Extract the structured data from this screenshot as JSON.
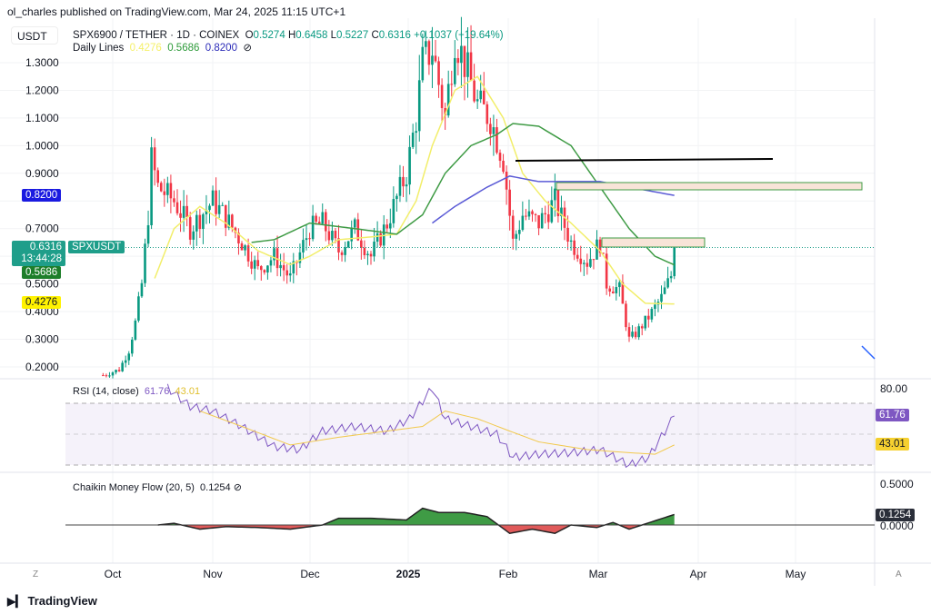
{
  "header": {
    "published": "ol_charles published on TradingView.com, Mar 24, 2025 11:15 UTC+1",
    "currency": "USDT",
    "symbol": "SPX6900 / TETHER · 1D · COINEX",
    "o_label": "O",
    "o": "0.5274",
    "h_label": "H",
    "h": "0.6458",
    "l_label": "L",
    "l": "0.5227",
    "c_label": "C",
    "c": "0.6316",
    "change": "+0.1037 (+19.64%)",
    "daily_lines_label": "Daily Lines",
    "ma1": "0.4276",
    "ma2": "0.5686",
    "ma3": "0.8200",
    "eye_icon": "⊘"
  },
  "price_labels": {
    "ma3": "0.8200",
    "price": "0.6316",
    "countdown": "13:44:28",
    "ticker": "SPXUSDT",
    "ma2": "0.5686",
    "ma1": "0.4276"
  },
  "rsi": {
    "title": "RSI (14, close)",
    "value": "61.76",
    "signal": "43.01",
    "axis_top": "80.00"
  },
  "cmf": {
    "title": "Chaikin Money Flow (20, 5)",
    "value": "0.1254",
    "axis_top": "0.5000",
    "axis_zero": "0.0000"
  },
  "footer": {
    "z": "Z",
    "a": "A",
    "logo": "TradingView"
  },
  "colors": {
    "up": "#089981",
    "down": "#f23645",
    "ma1": "#f2ee6a",
    "ma2": "#3f9b45",
    "ma3": "#5b5bd6",
    "rsi": "#7e57c2",
    "cmf_up": "#3f9b45",
    "cmf_down": "#e05a5a"
  },
  "chart_data": [
    {
      "type": "candlestick",
      "title": "SPX6900 / TETHER · 1D · COINEX",
      "y_ticks": [
        "1.3000",
        "1.2000",
        "1.1000",
        "1.0000",
        "0.9000",
        "0.7000",
        "0.5000",
        "0.4000",
        "0.3000",
        "0.2000"
      ],
      "x_ticks": [
        "Oct",
        "Nov",
        "Dec",
        "2025",
        "Feb",
        "Mar",
        "Apr",
        "May"
      ],
      "close": [
        [
          "2024-09-28",
          0.17
        ],
        [
          "2024-10-03",
          0.19
        ],
        [
          "2024-10-06",
          0.26
        ],
        [
          "2024-10-08",
          0.36
        ],
        [
          "2024-10-10",
          0.5
        ],
        [
          "2024-10-12",
          0.75
        ],
        [
          "2024-10-13",
          0.95
        ],
        [
          "2024-10-15",
          0.85
        ],
        [
          "2024-10-20",
          0.8
        ],
        [
          "2024-10-25",
          0.7
        ],
        [
          "2024-11-01",
          0.8
        ],
        [
          "2024-11-05",
          0.74
        ],
        [
          "2024-11-10",
          0.65
        ],
        [
          "2024-11-15",
          0.55
        ],
        [
          "2024-11-20",
          0.6
        ],
        [
          "2024-11-25",
          0.52
        ],
        [
          "2024-12-01",
          0.7
        ],
        [
          "2024-12-05",
          0.72
        ],
        [
          "2024-12-10",
          0.62
        ],
        [
          "2024-12-15",
          0.7
        ],
        [
          "2024-12-20",
          0.6
        ],
        [
          "2024-12-25",
          0.72
        ],
        [
          "2024-12-31",
          0.9
        ],
        [
          "2025-01-03",
          1.1
        ],
        [
          "2025-01-05",
          1.3
        ],
        [
          "2025-01-08",
          1.35
        ],
        [
          "2025-01-12",
          1.1
        ],
        [
          "2025-01-15",
          1.4
        ],
        [
          "2025-01-18",
          1.3
        ],
        [
          "2025-01-22",
          1.15
        ],
        [
          "2025-01-26",
          1.1
        ],
        [
          "2025-01-30",
          0.95
        ],
        [
          "2025-02-02",
          0.65
        ],
        [
          "2025-02-05",
          0.75
        ],
        [
          "2025-02-10",
          0.72
        ],
        [
          "2025-02-15",
          0.8
        ],
        [
          "2025-02-20",
          0.65
        ],
        [
          "2025-02-25",
          0.58
        ],
        [
          "2025-03-01",
          0.65
        ],
        [
          "2025-03-03",
          0.5
        ],
        [
          "2025-03-07",
          0.48
        ],
        [
          "2025-03-10",
          0.3
        ],
        [
          "2025-03-12",
          0.32
        ],
        [
          "2025-03-16",
          0.38
        ],
        [
          "2025-03-20",
          0.45
        ],
        [
          "2025-03-23",
          0.53
        ],
        [
          "2025-03-24",
          0.6316
        ]
      ],
      "ma_fast": [
        [
          "2024-10-14",
          0.52
        ],
        [
          "2024-10-20",
          0.7
        ],
        [
          "2024-10-28",
          0.78
        ],
        [
          "2024-11-05",
          0.72
        ],
        [
          "2024-11-15",
          0.62
        ],
        [
          "2024-11-25",
          0.57
        ],
        [
          "2024-12-01",
          0.6
        ],
        [
          "2024-12-10",
          0.66
        ],
        [
          "2024-12-20",
          0.67
        ],
        [
          "2024-12-28",
          0.68
        ],
        [
          "2025-01-03",
          0.8
        ],
        [
          "2025-01-08",
          1.0
        ],
        [
          "2025-01-15",
          1.2
        ],
        [
          "2025-01-22",
          1.25
        ],
        [
          "2025-01-30",
          1.1
        ],
        [
          "2025-02-05",
          0.9
        ],
        [
          "2025-02-12",
          0.8
        ],
        [
          "2025-02-20",
          0.72
        ],
        [
          "2025-03-01",
          0.62
        ],
        [
          "2025-03-08",
          0.5
        ],
        [
          "2025-03-15",
          0.43
        ],
        [
          "2025-03-24",
          0.4276
        ]
      ],
      "ma_mid": [
        [
          "2024-11-13",
          0.65
        ],
        [
          "2024-11-20",
          0.66
        ],
        [
          "2024-12-01",
          0.72
        ],
        [
          "2024-12-15",
          0.7
        ],
        [
          "2024-12-28",
          0.68
        ],
        [
          "2025-01-05",
          0.75
        ],
        [
          "2025-01-12",
          0.9
        ],
        [
          "2025-01-20",
          1.0
        ],
        [
          "2025-01-28",
          1.04
        ],
        [
          "2025-02-02",
          1.08
        ],
        [
          "2025-02-10",
          1.07
        ],
        [
          "2025-02-20",
          1.0
        ],
        [
          "2025-03-01",
          0.85
        ],
        [
          "2025-03-10",
          0.7
        ],
        [
          "2025-03-18",
          0.6
        ],
        [
          "2025-03-24",
          0.5686
        ]
      ],
      "ma_slow": [
        [
          "2025-01-08",
          0.72
        ],
        [
          "2025-01-15",
          0.78
        ],
        [
          "2025-01-25",
          0.85
        ],
        [
          "2025-02-01",
          0.89
        ],
        [
          "2025-02-10",
          0.87
        ],
        [
          "2025-02-20",
          0.87
        ],
        [
          "2025-03-01",
          0.87
        ],
        [
          "2025-03-10",
          0.85
        ],
        [
          "2025-03-24",
          0.82
        ]
      ]
    },
    {
      "type": "line",
      "title": "RSI (14, close)",
      "y_ticks": [
        "80.00"
      ],
      "bands": [
        30,
        70
      ],
      "rsi": [
        [
          "2024-10-18",
          80
        ],
        [
          "2024-10-25",
          68
        ],
        [
          "2024-11-01",
          65
        ],
        [
          "2024-11-10",
          55
        ],
        [
          "2024-11-20",
          42
        ],
        [
          "2024-11-28",
          40
        ],
        [
          "2024-12-05",
          52
        ],
        [
          "2024-12-15",
          55
        ],
        [
          "2024-12-25",
          52
        ],
        [
          "2025-01-01",
          60
        ],
        [
          "2025-01-08",
          80
        ],
        [
          "2025-01-12",
          60
        ],
        [
          "2025-01-20",
          55
        ],
        [
          "2025-01-28",
          50
        ],
        [
          "2025-02-02",
          35
        ],
        [
          "2025-02-10",
          37
        ],
        [
          "2025-02-20",
          38
        ],
        [
          "2025-03-01",
          40
        ],
        [
          "2025-03-10",
          30
        ],
        [
          "2025-03-16",
          35
        ],
        [
          "2025-03-24",
          61.76
        ]
      ],
      "signal": [
        [
          "2024-10-28",
          65
        ],
        [
          "2024-11-10",
          55
        ],
        [
          "2024-11-25",
          43
        ],
        [
          "2024-12-10",
          48
        ],
        [
          "2024-12-25",
          52
        ],
        [
          "2025-01-05",
          55
        ],
        [
          "2025-01-12",
          65
        ],
        [
          "2025-01-22",
          60
        ],
        [
          "2025-02-01",
          52
        ],
        [
          "2025-02-10",
          45
        ],
        [
          "2025-02-25",
          40
        ],
        [
          "2025-03-10",
          38
        ],
        [
          "2025-03-18",
          37
        ],
        [
          "2025-03-24",
          43.01
        ]
      ]
    },
    {
      "type": "area",
      "title": "Chaikin Money Flow (20, 5)",
      "y_ticks": [
        "0.5000",
        "0.0000"
      ],
      "cmf": [
        [
          "2024-10-15",
          0
        ],
        [
          "2024-10-20",
          0.02
        ],
        [
          "2024-10-28",
          -0.05
        ],
        [
          "2024-11-05",
          -0.02
        ],
        [
          "2024-11-15",
          -0.03
        ],
        [
          "2024-11-25",
          -0.05
        ],
        [
          "2024-12-05",
          0.0
        ],
        [
          "2024-12-10",
          0.08
        ],
        [
          "2024-12-20",
          0.08
        ],
        [
          "2024-12-31",
          0.06
        ],
        [
          "2025-01-05",
          0.2
        ],
        [
          "2025-01-10",
          0.15
        ],
        [
          "2025-01-18",
          0.15
        ],
        [
          "2025-01-25",
          0.1
        ],
        [
          "2025-02-01",
          -0.1
        ],
        [
          "2025-02-08",
          -0.05
        ],
        [
          "2025-02-15",
          -0.1
        ],
        [
          "2025-02-20",
          0.0
        ],
        [
          "2025-02-28",
          -0.03
        ],
        [
          "2025-03-05",
          0.03
        ],
        [
          "2025-03-10",
          -0.05
        ],
        [
          "2025-03-18",
          0.05
        ],
        [
          "2025-03-24",
          0.1254
        ]
      ]
    }
  ]
}
